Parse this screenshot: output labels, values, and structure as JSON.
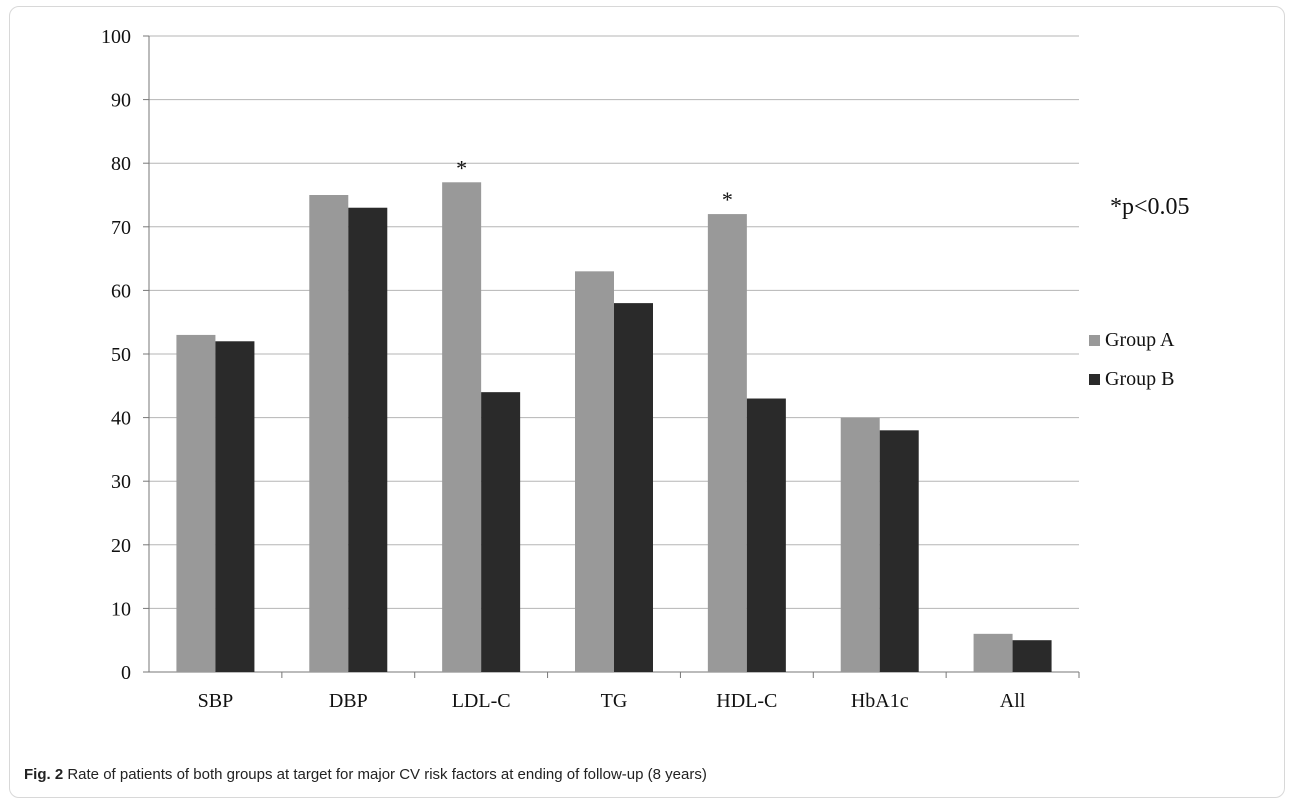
{
  "chart_data": {
    "type": "bar",
    "categories": [
      "SBP",
      "DBP",
      "LDL-C",
      "TG",
      "HDL-C",
      "HbA1c",
      "All"
    ],
    "series": [
      {
        "name": "Group A",
        "values": [
          53,
          75,
          77,
          63,
          72,
          40,
          6
        ],
        "color": "#999999"
      },
      {
        "name": "Group B",
        "values": [
          52,
          73,
          44,
          58,
          43,
          38,
          5
        ],
        "color": "#2a2a2a"
      }
    ],
    "ylim": [
      0,
      100
    ],
    "yticks": [
      0,
      10,
      20,
      30,
      40,
      50,
      60,
      70,
      80,
      90,
      100
    ],
    "grid": true,
    "legend_position": "right",
    "significance_marker": "*",
    "significant_categories": [
      "LDL-C",
      "HDL-C"
    ],
    "annotation": "*p<0.05"
  },
  "caption": {
    "label": "Fig. 2",
    "text": "Rate of patients of both groups at target for major CV risk factors at ending of follow-up (8 years)"
  }
}
